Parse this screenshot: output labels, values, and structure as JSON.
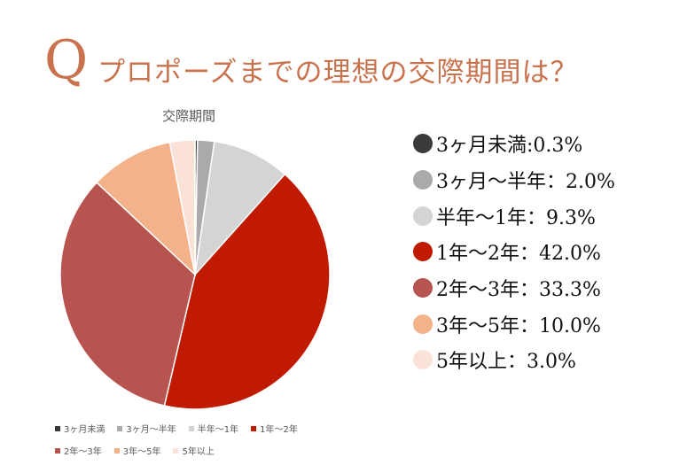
{
  "header": {
    "q_mark": "Q",
    "question": "プロポーズまでの理想の交際期間は？"
  },
  "chart_data": {
    "type": "pie",
    "title": "交際期間",
    "categories": [
      "3ヶ月未満",
      "3ヶ月〜半年",
      "半年〜1年",
      "1年〜2年",
      "2年〜3年",
      "3年〜5年",
      "5年以上"
    ],
    "values": [
      0.3,
      2.0,
      9.3,
      42.0,
      33.3,
      10.0,
      3.0
    ],
    "colors": [
      "#3a3a3a",
      "#aaaaaa",
      "#d4d4d4",
      "#c01a00",
      "#b85450",
      "#f3b28a",
      "#fbe2d8"
    ],
    "legend_position": "bottom",
    "annotation_labels": [
      "3ヶ月未満:0.3%",
      "3ヶ月〜半年：2.0%",
      "半年〜1年：9.3%",
      "1年〜2年：42.0%",
      "2年〜3年：33.3%",
      "3年〜5年：10.0%",
      "5年以上：3.0%"
    ]
  }
}
